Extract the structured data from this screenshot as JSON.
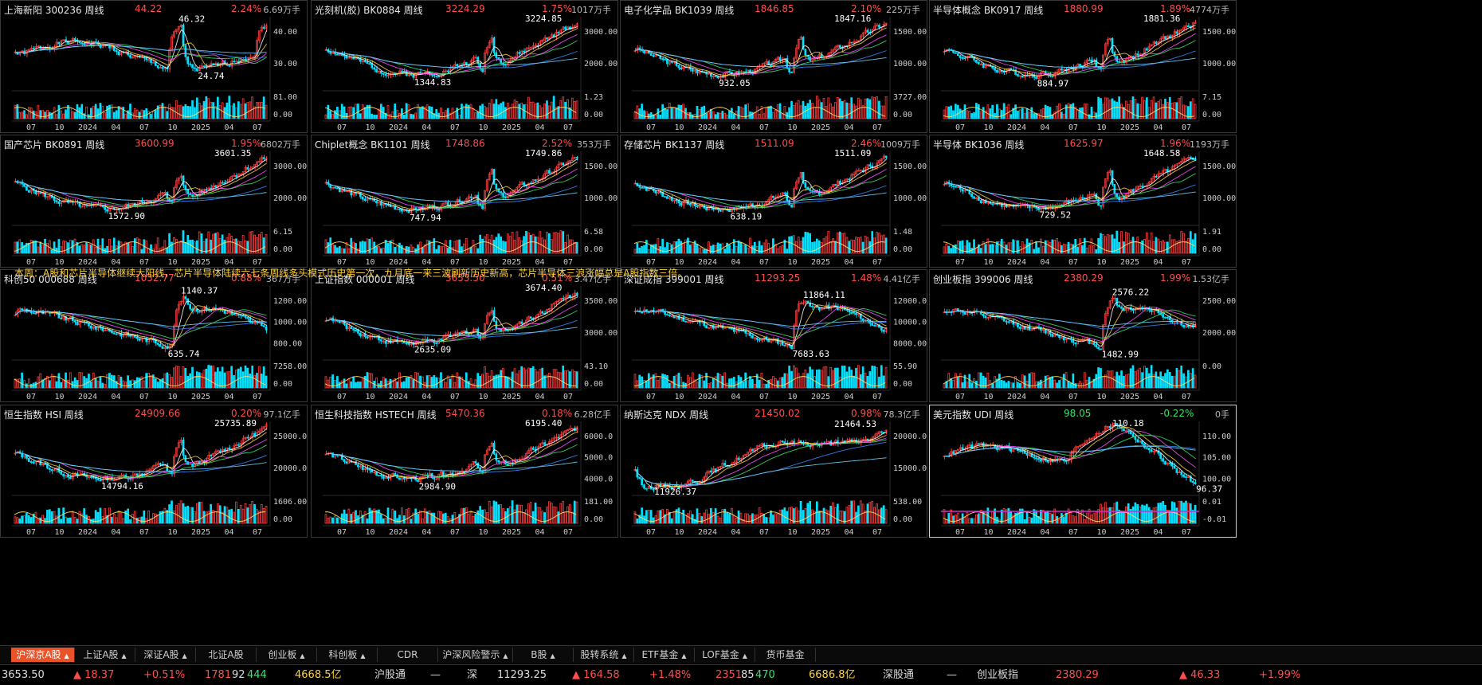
{
  "annotation": "本周：A股和芯片半导体继续大阳线，芯片半导体陆续六七条周线多头模式历史第一次，九月底一来三波刷新历史新高，芯片半导体三浪涨幅总是A股指数三倍。",
  "colors": {
    "up": "#ff3b3b",
    "down": "#00e0ff",
    "accent": "#e8532a",
    "text_up": "#ff4d4d",
    "text_down": "#36e36b"
  },
  "panels": [
    {
      "name": "上海新阳 300236 周线",
      "price": "44.22",
      "pct": "2.24%",
      "vol": "6.69万手",
      "hi": "46.32",
      "lo": "24.74",
      "ticks": [
        "40.00",
        "30.00"
      ],
      "vticks": [
        "81.00",
        "0.00"
      ],
      "xl": [
        "07",
        "10",
        "2024",
        "04",
        "07",
        "10",
        "2025",
        "04",
        "07"
      ],
      "seed": 1,
      "shape": "mid"
    },
    {
      "name": "光刻机(胶) BK0884 周线",
      "price": "3224.29",
      "pct": "1.75%",
      "vol": "1017万手",
      "hi": "3224.85",
      "lo": "1344.83",
      "ticks": [
        "3000.00",
        "2000.00"
      ],
      "vticks": [
        "1.23",
        "0.00"
      ],
      "xl": [
        "07",
        "10",
        "2024",
        "04",
        "07",
        "10",
        "2025",
        "04",
        "07"
      ],
      "seed": 2,
      "shape": "rise"
    },
    {
      "name": "电子化学品 BK1039 周线",
      "price": "1846.85",
      "pct": "2.10%",
      "vol": "225万手",
      "hi": "1847.16",
      "lo": "932.05",
      "ticks": [
        "1500.00",
        "1000.00"
      ],
      "vticks": [
        "3727.00",
        "0.00"
      ],
      "xl": [
        "07",
        "10",
        "2024",
        "04",
        "07",
        "10",
        "2025",
        "04",
        "07"
      ],
      "seed": 3,
      "shape": "rise"
    },
    {
      "name": "半导体概念 BK0917 周线",
      "price": "1880.99",
      "pct": "1.89%",
      "vol": "4774万手",
      "hi": "1881.36",
      "lo": "884.97",
      "ticks": [
        "1500.00",
        "1000.00"
      ],
      "vticks": [
        "7.15",
        "0.00"
      ],
      "xl": [
        "07",
        "10",
        "2024",
        "04",
        "07",
        "10",
        "2025",
        "04",
        "07"
      ],
      "seed": 4,
      "shape": "rise"
    },
    {
      "name": "国产芯片 BK0891 周线",
      "price": "3600.99",
      "pct": "1.95%",
      "vol": "6802万手",
      "hi": "3601.35",
      "lo": "1572.90",
      "ticks": [
        "3000.00",
        "2000.00"
      ],
      "vticks": [
        "6.15",
        "0.00"
      ],
      "xl": [
        "07",
        "10",
        "2024",
        "04",
        "07",
        "10",
        "2025",
        "04",
        "07"
      ],
      "seed": 5,
      "shape": "rise"
    },
    {
      "name": "Chiplet概念 BK1101 周线",
      "price": "1748.86",
      "pct": "2.52%",
      "vol": "353万手",
      "hi": "1749.86",
      "lo": "747.94",
      "ticks": [
        "1500.00",
        "1000.00"
      ],
      "vticks": [
        "6.58",
        "0.00"
      ],
      "xl": [
        "07",
        "10",
        "2024",
        "04",
        "07",
        "10",
        "2025",
        "04",
        "07"
      ],
      "seed": 6,
      "shape": "rise"
    },
    {
      "name": "存储芯片 BK1137 周线",
      "price": "1511.09",
      "pct": "2.46%",
      "vol": "1009万手",
      "hi": "1511.09",
      "lo": "638.19",
      "ticks": [
        "1500.00",
        "1000.00"
      ],
      "vticks": [
        "1.48",
        "0.00"
      ],
      "xl": [
        "07",
        "10",
        "2024",
        "04",
        "07",
        "10",
        "2025",
        "04",
        "07"
      ],
      "seed": 7,
      "shape": "rise"
    },
    {
      "name": "半导体 BK1036 周线",
      "price": "1625.97",
      "pct": "1.96%",
      "vol": "1193万手",
      "hi": "1648.58",
      "lo": "729.52",
      "ticks": [
        "1500.00",
        "1000.00"
      ],
      "vticks": [
        "1.91",
        "0.00"
      ],
      "xl": [
        "07",
        "10",
        "2024",
        "04",
        "07",
        "10",
        "2025",
        "04",
        "07"
      ],
      "seed": 8,
      "shape": "rise"
    },
    {
      "name": "科创50 000688 周线",
      "price": "1052.77",
      "pct": "0.88%",
      "vol": "367万手",
      "hi": "1140.37",
      "lo": "635.74",
      "ticks": [
        "1200.00",
        "1000.00",
        "800.00"
      ],
      "vticks": [
        "7258.00",
        "0.00"
      ],
      "xl": [
        "07",
        "10",
        "2024",
        "04",
        "07",
        "10",
        "2025",
        "04",
        "07"
      ],
      "seed": 9,
      "shape": "flat"
    },
    {
      "name": "上证指数 000001 周线",
      "price": "3653.50",
      "pct": "0.51%",
      "vol": "3.47亿手",
      "hi": "3674.40",
      "lo": "2635.09",
      "ticks": [
        "3500.00",
        "3000.00"
      ],
      "vticks": [
        "43.10",
        "0.00"
      ],
      "xl": [
        "07",
        "10",
        "2024",
        "04",
        "07",
        "10",
        "2025",
        "04",
        "07"
      ],
      "seed": 10,
      "shape": "rise"
    },
    {
      "name": "深证成指 399001 周线",
      "price": "11293.25",
      "pct": "1.48%",
      "vol": "4.41亿手",
      "hi": "11864.11",
      "lo": "7683.63",
      "ticks": [
        "12000.00",
        "10000.00",
        "8000.00"
      ],
      "vticks": [
        "55.90",
        "0.00"
      ],
      "xl": [
        "07",
        "10",
        "2024",
        "04",
        "07",
        "10",
        "2025",
        "04",
        "07"
      ],
      "seed": 11,
      "shape": "flat"
    },
    {
      "name": "创业板指 399006 周线",
      "price": "2380.29",
      "pct": "1.99%",
      "vol": "1.53亿手",
      "hi": "2576.22",
      "lo": "1482.99",
      "ticks": [
        "2500.00",
        "2000.00"
      ],
      "vticks": [
        "0.00"
      ],
      "xl": [
        "07",
        "10",
        "2024",
        "04",
        "07",
        "10",
        "2025",
        "04",
        "07"
      ],
      "seed": 12,
      "shape": "flat"
    },
    {
      "name": "恒生指数 HSI 周线",
      "price": "24909.66",
      "pct": "0.20%",
      "vol": "97.1亿手",
      "hi": "25735.89",
      "lo": "14794.16",
      "ticks": [
        "25000.0",
        "20000.0"
      ],
      "vticks": [
        "1606.00",
        "0.00"
      ],
      "xl": [
        "07",
        "10",
        "2024",
        "04",
        "07",
        "10",
        "2025",
        "04",
        "07"
      ],
      "seed": 13,
      "shape": "rise"
    },
    {
      "name": "恒生科技指数 HSTECH 周线",
      "price": "5470.36",
      "pct": "0.18%",
      "vol": "6.28亿手",
      "hi": "6195.40",
      "lo": "2984.90",
      "ticks": [
        "6000.0",
        "5000.0",
        "4000.0"
      ],
      "vticks": [
        "181.00",
        "0.00"
      ],
      "xl": [
        "07",
        "10",
        "2024",
        "04",
        "07",
        "10",
        "2025",
        "04",
        "07"
      ],
      "seed": 14,
      "shape": "rise"
    },
    {
      "name": "纳斯达克 NDX 周线",
      "price": "21450.02",
      "pct": "0.98%",
      "vol": "78.3亿手",
      "hi": "21464.53",
      "lo": "11926.37",
      "ticks": [
        "20000.0",
        "15000.0"
      ],
      "vticks": [
        "538.00",
        "0.00"
      ],
      "xl": [
        "07",
        "10",
        "2024",
        "04",
        "07",
        "10",
        "2025",
        "04",
        "07"
      ],
      "seed": 15,
      "shape": "steady"
    },
    {
      "name": "美元指数 UDI 周线",
      "price": "98.05",
      "pct": "-0.22%",
      "vol": "0手",
      "hi": "110.18",
      "lo": "96.37",
      "ticks": [
        "110.00",
        "105.00",
        "100.00"
      ],
      "vticks": [
        "0.01",
        "-0.01"
      ],
      "xl": [
        "07",
        "10",
        "2024",
        "04",
        "07",
        "10",
        "2025",
        "04",
        "07"
      ],
      "seed": 16,
      "shape": "fall",
      "selected": true,
      "neg": true
    }
  ],
  "tabs": [
    {
      "label": "沪深京A股",
      "arrow": true,
      "active": true
    },
    {
      "label": "上证A股",
      "arrow": true
    },
    {
      "label": "深证A股",
      "arrow": true
    },
    {
      "label": "北证A股"
    },
    {
      "label": "创业板",
      "arrow": true
    },
    {
      "label": "科创板",
      "arrow": true
    },
    {
      "label": "CDR"
    },
    {
      "label": "沪深风险警示",
      "arrow": true
    },
    {
      "label": "B股",
      "arrow": true
    },
    {
      "label": "股转系统",
      "arrow": true
    },
    {
      "label": "ETF基金",
      "arrow": true
    },
    {
      "label": "LOF基金",
      "arrow": true
    },
    {
      "label": "货币基金"
    }
  ],
  "status": {
    "sh_price": "3653.50",
    "sh_chg": "▲ 18.37",
    "sh_pct": "+0.51%",
    "sh_up": "1781",
    "sh_flat": "92",
    "sh_down": "444",
    "sh_amt": "4668.5亿",
    "hgt_label": "沪股通",
    "hgt_val": "—",
    "sz_label": "深",
    "sz_price": "11293.25",
    "sz_chg": "▲ 164.58",
    "sz_pct": "+1.48%",
    "sz_up": "2351",
    "sz_flat": "85",
    "sz_down": "470",
    "sz_amt": "6686.8亿",
    "sgt_label": "深股通",
    "sgt_val": "—",
    "cyb_label": "创业板指",
    "cyb_price": "2380.29",
    "cyb_chg": "▲ 46.33",
    "cyb_pct": "+1.99%"
  }
}
